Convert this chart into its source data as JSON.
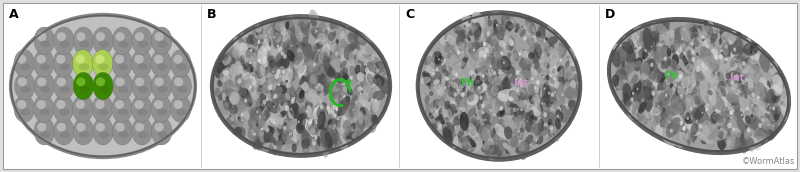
{
  "panels": [
    "A",
    "B",
    "C",
    "D"
  ],
  "panel_labels": [
    "A",
    "B",
    "C",
    "D"
  ],
  "panel_label_color": "black",
  "panel_label_fontsize": 9,
  "panel_label_fontweight": "bold",
  "label_C_Ph": {
    "text": "Ph",
    "color": "#44bb44",
    "fontsize": 7
  },
  "label_C_Int": {
    "text": "Int",
    "color": "#cc99cc",
    "fontsize": 7
  },
  "label_D_Ph": {
    "text": "Ph",
    "color": "#44bb44",
    "fontsize": 7
  },
  "label_D_Int": {
    "text": "Int",
    "color": "#cc99cc",
    "fontsize": 7
  },
  "watermark": "©WormAtlas",
  "watermark_color": "#888888",
  "watermark_fontsize": 6,
  "outer_bg": "#e0e0e0",
  "figure_width": 8.0,
  "figure_height": 1.72
}
